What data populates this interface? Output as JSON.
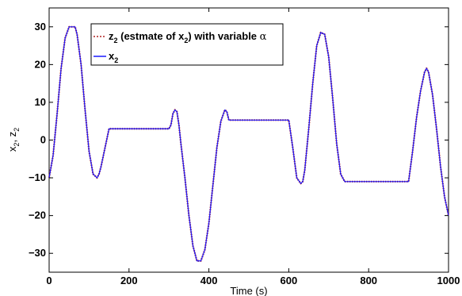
{
  "chart_data": {
    "type": "line",
    "title": "",
    "xlabel": "Time (s)",
    "ylabel_main": "x",
    "ylabel_sub1": "2",
    "ylabel_sep": ", z",
    "ylabel_sub2": "2",
    "xlim": [
      0,
      1000
    ],
    "ylim": [
      -35,
      35
    ],
    "xticks": [
      0,
      200,
      400,
      600,
      800,
      1000
    ],
    "yticks": [
      -30,
      -20,
      -10,
      0,
      10,
      20,
      30
    ],
    "grid": false,
    "legend_placement": "top-center",
    "series": [
      {
        "key": "z2",
        "legend_parts": [
          "z",
          "2",
          " (estmate of x",
          "2",
          ") with variable ",
          "α"
        ],
        "color": "#b22222",
        "style": "dotted",
        "x": [
          0,
          10,
          20,
          30,
          40,
          50,
          60,
          65,
          70,
          80,
          90,
          100,
          110,
          120,
          125,
          130,
          140,
          150,
          200,
          250,
          300,
          305,
          310,
          315,
          320,
          325,
          330,
          340,
          350,
          360,
          370,
          380,
          390,
          400,
          410,
          420,
          430,
          440,
          445,
          450,
          500,
          550,
          600,
          610,
          620,
          630,
          635,
          640,
          650,
          660,
          670,
          680,
          690,
          700,
          710,
          720,
          730,
          740,
          750,
          800,
          850,
          900,
          910,
          920,
          930,
          940,
          945,
          950,
          960,
          970,
          980,
          990,
          1000
        ],
        "y": [
          -10,
          -4,
          7,
          19,
          27,
          30,
          30,
          30,
          28,
          20,
          8,
          -3,
          -9,
          -10,
          -9,
          -7,
          -2,
          3,
          3,
          3,
          3,
          4,
          7,
          8,
          7.5,
          4,
          -1,
          -10,
          -20,
          -28,
          -32,
          -32,
          -29,
          -22,
          -12,
          -2,
          5,
          8,
          7.5,
          5.3,
          5.3,
          5.3,
          5.3,
          -2,
          -10,
          -11.5,
          -11,
          -8,
          3,
          15,
          25,
          28.5,
          28,
          22,
          11,
          -1,
          -9,
          -11,
          -11,
          -11,
          -11,
          -11,
          -3,
          6,
          13,
          18,
          19,
          18,
          12,
          3,
          -7,
          -15,
          -20
        ]
      },
      {
        "key": "x2",
        "legend_parts": [
          "x",
          "2"
        ],
        "color": "#1a1aff",
        "style": "solid",
        "x": [
          0,
          10,
          20,
          30,
          40,
          50,
          60,
          65,
          70,
          80,
          90,
          100,
          110,
          120,
          125,
          130,
          140,
          150,
          200,
          250,
          300,
          305,
          310,
          315,
          320,
          325,
          330,
          340,
          350,
          360,
          370,
          380,
          390,
          400,
          410,
          420,
          430,
          440,
          445,
          450,
          500,
          550,
          600,
          610,
          620,
          630,
          635,
          640,
          650,
          660,
          670,
          680,
          690,
          700,
          710,
          720,
          730,
          740,
          750,
          800,
          850,
          900,
          910,
          920,
          930,
          940,
          945,
          950,
          960,
          970,
          980,
          990,
          1000
        ],
        "y": [
          -10,
          -4,
          7,
          19,
          27,
          30,
          30,
          30,
          28,
          20,
          8,
          -3,
          -9,
          -10,
          -9,
          -7,
          -2,
          3,
          3,
          3,
          3,
          4,
          7,
          8,
          7.5,
          4,
          -1,
          -10,
          -20,
          -28,
          -32,
          -32,
          -29,
          -22,
          -12,
          -2,
          5,
          8,
          7.5,
          5.3,
          5.3,
          5.3,
          5.3,
          -2,
          -10,
          -11.5,
          -11,
          -8,
          3,
          15,
          25,
          28.5,
          28,
          22,
          11,
          -1,
          -9,
          -11,
          -11,
          -11,
          -11,
          -11,
          -3,
          6,
          13,
          18,
          19,
          18,
          12,
          3,
          -7,
          -15,
          -20
        ]
      }
    ]
  }
}
